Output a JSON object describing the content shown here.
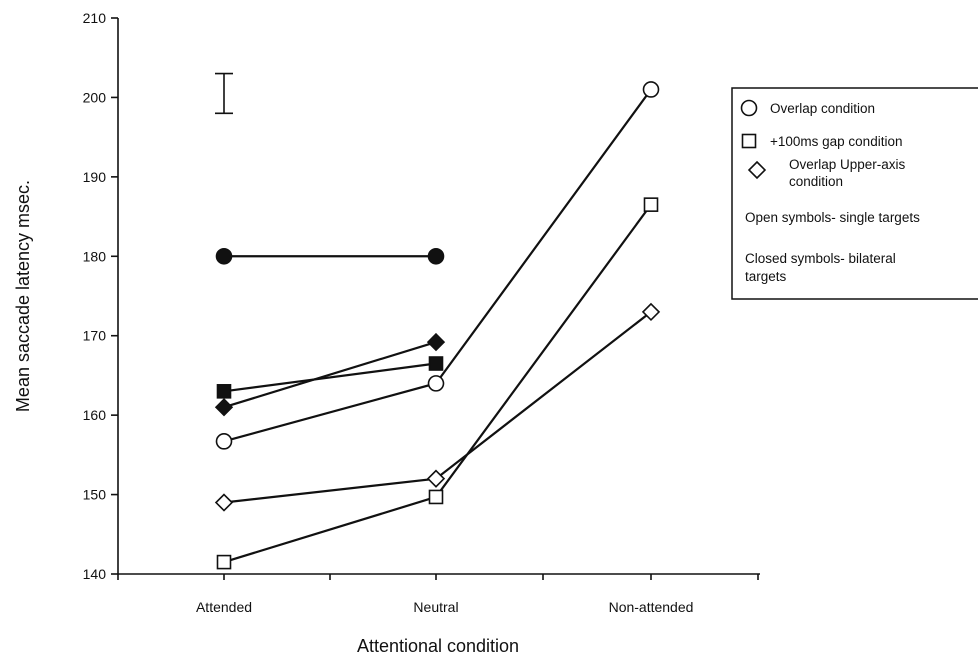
{
  "chart_data": {
    "type": "line",
    "title": "",
    "xlabel": "Attentional condition",
    "ylabel": "Mean saccade latency msec.",
    "categories": [
      "Attended",
      "Neutral",
      "Non-attended"
    ],
    "ylim": [
      140,
      210
    ],
    "yticks": [
      140,
      150,
      160,
      170,
      180,
      190,
      200,
      210
    ],
    "grid": false,
    "legend_position": "right",
    "series": [
      {
        "marker": "circle",
        "filled": true,
        "values": [
          180,
          180,
          null
        ]
      },
      {
        "marker": "square",
        "filled": true,
        "values": [
          163,
          166.5,
          null
        ]
      },
      {
        "marker": "diamond",
        "filled": true,
        "values": [
          161,
          169.2,
          null
        ]
      },
      {
        "marker": "circle",
        "filled": false,
        "values": [
          156.7,
          164,
          201
        ]
      },
      {
        "marker": "diamond",
        "filled": false,
        "values": [
          149,
          152,
          173
        ]
      },
      {
        "marker": "square",
        "filled": false,
        "values": [
          141.5,
          149.7,
          186.5
        ]
      }
    ],
    "error_bar": {
      "category": "Attended",
      "low": 198,
      "high": 203
    },
    "legend": {
      "entries": [
        {
          "marker": "circle",
          "label": "Overlap  condition"
        },
        {
          "marker": "square",
          "label": "+100ms gap condition"
        },
        {
          "marker": "diamond",
          "label_lines": [
            "Overlap Upper-axis",
            "condition"
          ]
        }
      ],
      "notes": [
        {
          "lines": [
            "Open symbols- single targets"
          ]
        },
        {
          "lines": [
            "Closed symbols- bilateral",
            "targets"
          ]
        }
      ]
    }
  }
}
